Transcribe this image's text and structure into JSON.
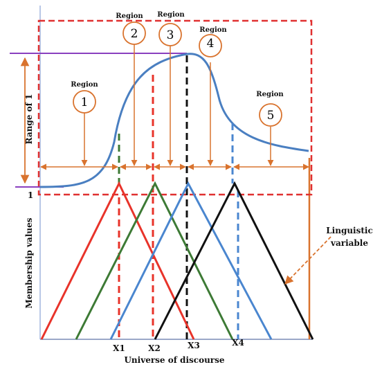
{
  "colors": {
    "border_dashed": "#e03030",
    "orange": "#d9732e",
    "curve": "#4a7fc1",
    "purple": "#8a3fbf",
    "tri_red": "#e8332a",
    "tri_green": "#3d7a35",
    "tri_blue": "#4a86cf",
    "tri_black": "#111111"
  },
  "regions": [
    {
      "word": "Region",
      "number": "1"
    },
    {
      "word": "Region",
      "number": "2"
    },
    {
      "word": "Region",
      "number": "3"
    },
    {
      "word": "Region",
      "number": "4"
    },
    {
      "word": "Region",
      "number": "5"
    }
  ],
  "axis": {
    "range_label": "Range of 1",
    "one_label": "1",
    "y_label": "Membership values",
    "x_label": "Universe of discourse",
    "ticks": [
      "X1",
      "X2",
      "X3",
      "X4"
    ]
  },
  "linguistic": {
    "line1": "Linguistic",
    "line2": "variable"
  }
}
